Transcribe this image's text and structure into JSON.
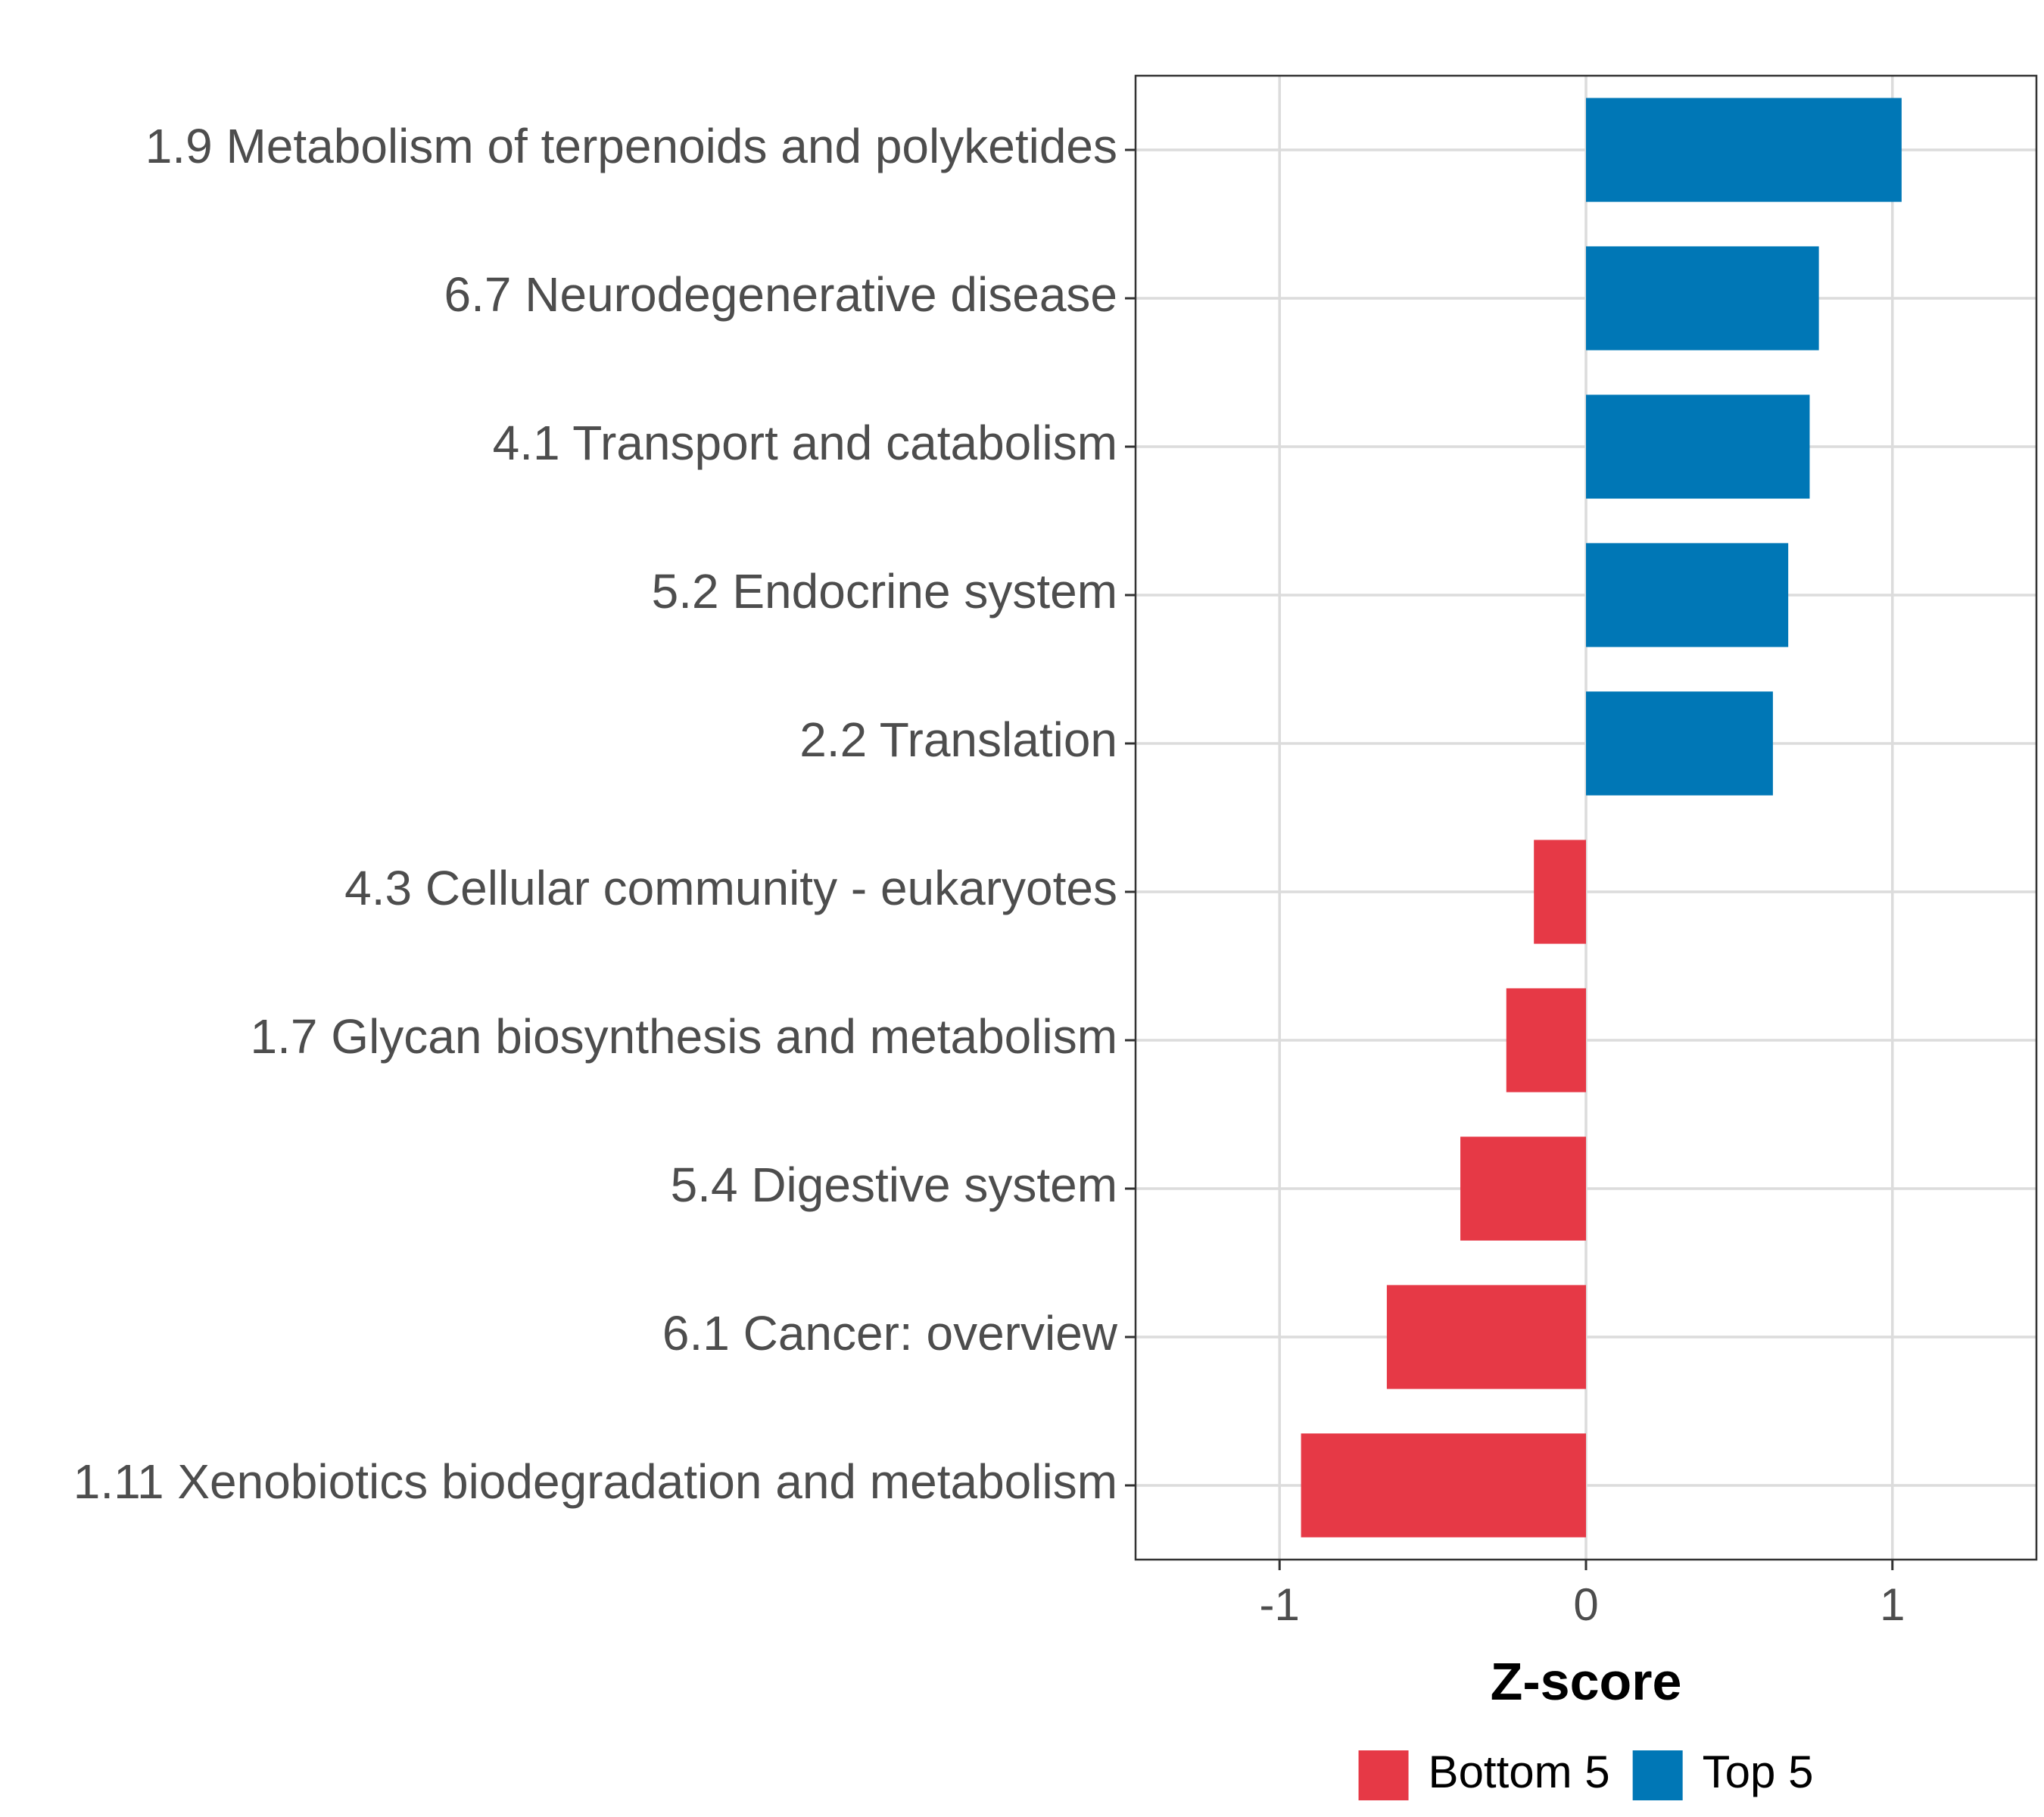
{
  "chart_data": {
    "type": "bar",
    "orientation": "horizontal",
    "categories": [
      "1.9 Metabolism of terpenoids and polyketides",
      "6.7 Neurodegenerative disease",
      "4.1 Transport and catabolism",
      "5.2 Endocrine system",
      "2.2 Translation",
      "4.3 Cellular community - eukaryotes",
      "1.7 Glycan biosynthesis and metabolism",
      "5.4 Digestive system",
      "6.1 Cancer: overview",
      "1.11 Xenobiotics biodegradation and metabolism"
    ],
    "values": [
      1.03,
      0.76,
      0.73,
      0.66,
      0.61,
      -0.17,
      -0.26,
      -0.41,
      -0.65,
      -0.93
    ],
    "groups": [
      "Top 5",
      "Top 5",
      "Top 5",
      "Top 5",
      "Top 5",
      "Bottom 5",
      "Bottom 5",
      "Bottom 5",
      "Bottom 5",
      "Bottom 5"
    ],
    "xlabel": "Z-score",
    "xlim": [
      -1.47,
      1.47
    ],
    "xticks": [
      {
        "value": -1,
        "label": "-1"
      },
      {
        "value": 0,
        "label": "0"
      },
      {
        "value": 1,
        "label": "1"
      }
    ],
    "grid": true,
    "legend": {
      "position": "bottom",
      "items": [
        {
          "name": "Bottom 5",
          "color": "#e63946"
        },
        {
          "name": "Top 5",
          "color": "#0077b6"
        }
      ]
    }
  }
}
